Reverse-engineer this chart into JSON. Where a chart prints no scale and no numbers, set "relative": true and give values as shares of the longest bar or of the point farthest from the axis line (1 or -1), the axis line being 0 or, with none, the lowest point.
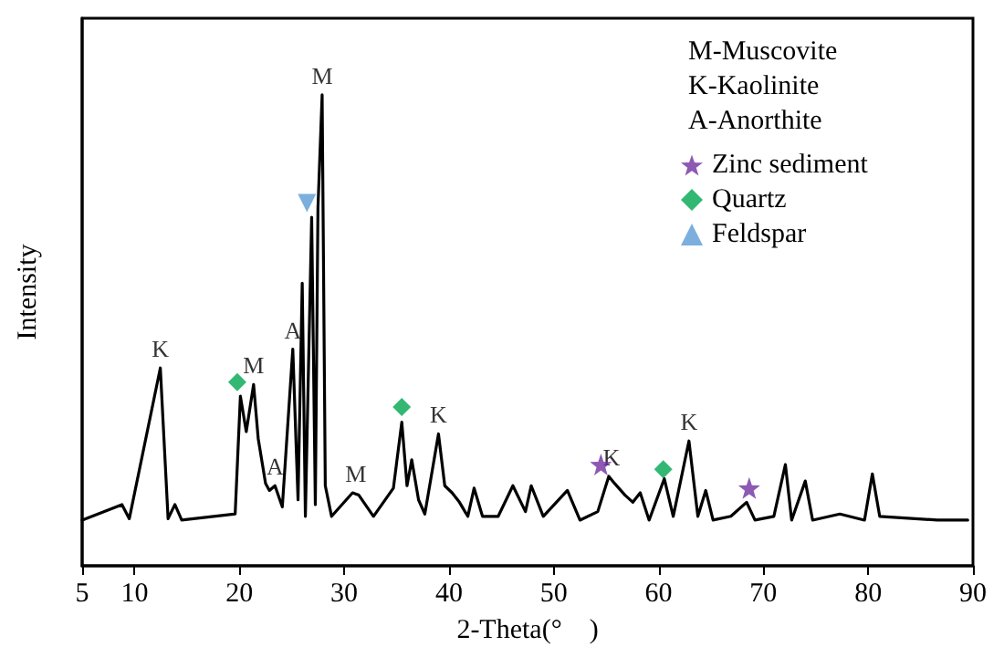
{
  "chart_data": {
    "type": "line",
    "relative": true,
    "xlabel": "2-Theta(°　)",
    "ylabel": "Intensity",
    "xlim": [
      5,
      90
    ],
    "xticks": [
      5,
      10,
      20,
      30,
      40,
      50,
      60,
      70,
      80,
      90
    ],
    "grid": false,
    "legend": "top right",
    "tick_labels": "x",
    "series": [
      {
        "color": "#000000",
        "marker": "none",
        "x": [
          5,
          8.8,
          9.5,
          12.46,
          13.2,
          13.85,
          14.5,
          19.6,
          20.1,
          20.66,
          21.36,
          21.8,
          22.5,
          22.87,
          23.4,
          24.1,
          25.1,
          25.6,
          26.0,
          26.3,
          26.9,
          27.25,
          27.5,
          27.9,
          28.2,
          28.8,
          30.8,
          31.4,
          32.8,
          34.7,
          35.5,
          36.0,
          36.45,
          37.1,
          37.7,
          39.0,
          39.6,
          40.3,
          41.0,
          41.8,
          42.4,
          43.2,
          44.7,
          46.1,
          47.3,
          47.85,
          49.0,
          51.3,
          52.5,
          54.2,
          55.25,
          55.8,
          56.8,
          57.55,
          58.25,
          59.1,
          60.55,
          61.4,
          62.9,
          63.75,
          64.5,
          65.2,
          66.9,
          68.4,
          69.2,
          71.0,
          72.1,
          72.7,
          74.0,
          74.7,
          77.3,
          79.65,
          80.4,
          81.1,
          86.6,
          89.5
        ],
        "values": [
          0.097,
          0.13,
          0.1,
          0.42,
          0.1,
          0.13,
          0.097,
          0.11,
          0.36,
          0.285,
          0.385,
          0.27,
          0.175,
          0.16,
          0.17,
          0.125,
          0.46,
          0.14,
          0.6,
          0.105,
          0.74,
          0.13,
          0.76,
          1.0,
          0.17,
          0.105,
          0.155,
          0.15,
          0.105,
          0.165,
          0.305,
          0.17,
          0.225,
          0.14,
          0.11,
          0.28,
          0.17,
          0.155,
          0.135,
          0.105,
          0.165,
          0.105,
          0.105,
          0.17,
          0.115,
          0.17,
          0.105,
          0.16,
          0.097,
          0.115,
          0.19,
          0.175,
          0.15,
          0.135,
          0.155,
          0.097,
          0.185,
          0.105,
          0.265,
          0.105,
          0.16,
          0.097,
          0.105,
          0.135,
          0.097,
          0.105,
          0.215,
          0.097,
          0.18,
          0.097,
          0.11,
          0.097,
          0.195,
          0.105,
          0.097,
          0.097
        ]
      },
      {
        "type": "scatter",
        "name": "Zinc sediment",
        "color": "#7030a0",
        "marker": "star",
        "x": [
          54.5,
          68.65
        ],
        "values": [
          0.215,
          0.165
        ]
      },
      {
        "type": "scatter",
        "name": "Quartz",
        "color": "#00a651",
        "marker": "diamond",
        "x": [
          19.8,
          35.5,
          60.45
        ],
        "values": [
          0.39,
          0.337,
          0.205
        ]
      },
      {
        "type": "scatter",
        "name": "Feldspar",
        "color": "#5b9bd5",
        "marker": "triangle",
        "x": [
          26.45
        ],
        "values": [
          0.77
        ]
      }
    ],
    "annotations": [
      "M-Muscovite",
      "K-Kaolinite",
      "A-Anorthite",
      {
        "text": "K",
        "x": 12.46,
        "y": 0.42
      },
      {
        "text": "M",
        "x": 21.36,
        "y": 0.385
      },
      {
        "text": "A",
        "x": 23.4,
        "y": 0.17
      },
      {
        "text": "A",
        "x": 25.1,
        "y": 0.46
      },
      {
        "text": "M",
        "x": 27.9,
        "y": 1.0
      },
      {
        "text": "M",
        "x": 31.1,
        "y": 0.155
      },
      {
        "text": "K",
        "x": 39.0,
        "y": 0.28
      },
      {
        "text": "K",
        "x": 55.5,
        "y": 0.19
      },
      {
        "text": "K",
        "x": 62.9,
        "y": 0.265
      }
    ]
  }
}
